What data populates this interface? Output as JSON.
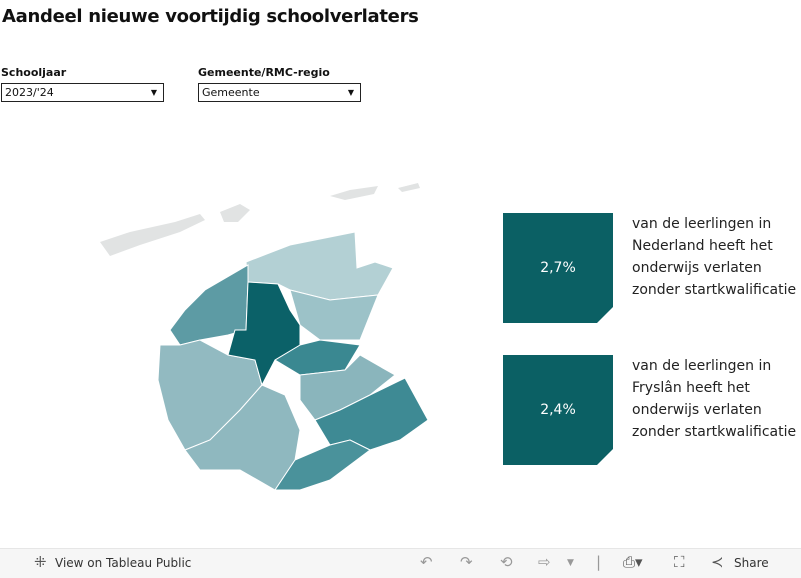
{
  "title": "Aandeel nieuwe voortijdig schoolverlaters",
  "filters": [
    {
      "label": "Schooljaar",
      "value": "2023/'24"
    },
    {
      "label": "Gemeente/RMC-regio",
      "value": "Gemeente"
    }
  ],
  "kpis": [
    {
      "value": "2,7%",
      "text": "van de leerlingen in Nederland heeft het onderwijs verlaten zonder startkwalificatie"
    },
    {
      "value": "2,4%",
      "text": "van de leerlingen in Fryslân heeft het onderwijs verlaten zonder startkwalificatie"
    }
  ],
  "colors": {
    "card": "#0b6064",
    "highest": "#0b6168",
    "island": "#e1e3e3"
  },
  "toolbar": {
    "view": "View on Tableau Public",
    "share": "Share"
  }
}
